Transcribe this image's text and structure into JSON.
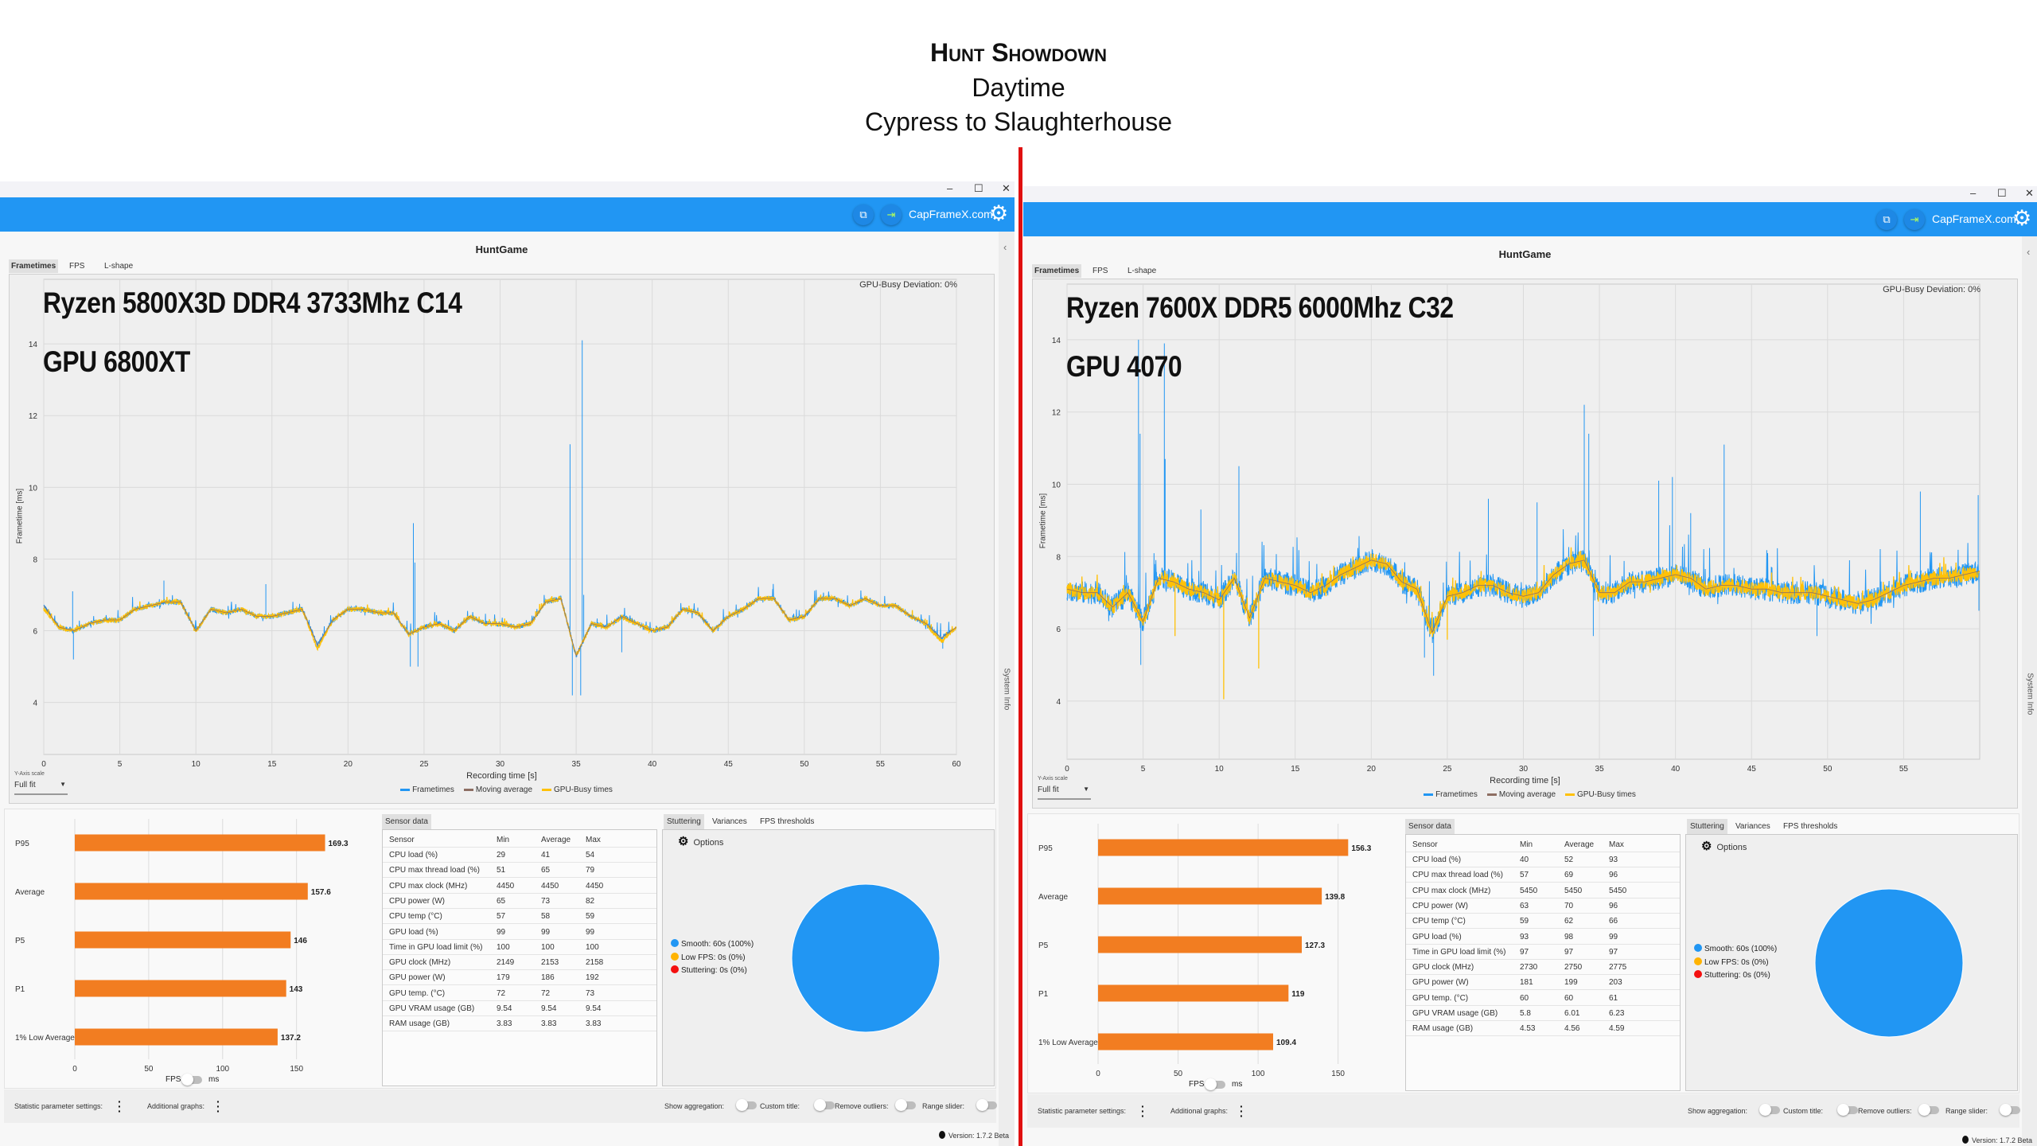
{
  "header": {
    "title": "Hunt Showdown",
    "subtitle": "Daytime",
    "route": "Cypress to Slaughterhouse"
  },
  "colors": {
    "accent": "#2196F3",
    "bar": "#F27D21",
    "frametimes": "#2196F3",
    "moving_average": "#8D6E63",
    "gpu_busy": "#FFC107",
    "divider": "#E01010",
    "smooth": "#2196F3",
    "low_fps": "#FFB300",
    "stuttering": "#F41010"
  },
  "windows": [
    {
      "window_controls": {
        "minimize": "–",
        "maximize": "☐",
        "close": "✕"
      },
      "site_link": "CapFrameX.com",
      "app_title": "HuntGame",
      "tabs": [
        "Frametimes",
        "FPS",
        "L-shape"
      ],
      "overlay_line1": "Ryzen 5800X3D DDR4 3733Mhz C14",
      "overlay_line2": "GPU 6800XT",
      "gpu_busy_deviation": "GPU-Busy Deviation: 0%",
      "side_panel": "System Info",
      "yaxis_scale_label": "Y-Axis scale",
      "yaxis_scale_value": "Full fit",
      "toggle_fps": "FPS",
      "toggle_ms": "ms",
      "sensor": {
        "tab": "Sensor data",
        "columns": [
          "Sensor",
          "Min",
          "Average",
          "Max"
        ],
        "rows": [
          [
            "CPU load (%)",
            "29",
            "41",
            "54"
          ],
          [
            "CPU max thread load (%)",
            "51",
            "65",
            "79"
          ],
          [
            "CPU max clock (MHz)",
            "4450",
            "4450",
            "4450"
          ],
          [
            "CPU power (W)",
            "65",
            "73",
            "82"
          ],
          [
            "CPU temp (°C)",
            "57",
            "58",
            "59"
          ],
          [
            "GPU load (%)",
            "99",
            "99",
            "99"
          ],
          [
            "Time in GPU load limit (%)",
            "100",
            "100",
            "100"
          ],
          [
            "GPU clock (MHz)",
            "2149",
            "2153",
            "2158"
          ],
          [
            "GPU power (W)",
            "179",
            "186",
            "192"
          ],
          [
            "GPU temp. (°C)",
            "72",
            "72",
            "73"
          ],
          [
            "GPU VRAM usage (GB)",
            "9.54",
            "9.54",
            "9.54"
          ],
          [
            "RAM usage (GB)",
            "3.83",
            "3.83",
            "3.83"
          ]
        ]
      },
      "stutter": {
        "tabs": [
          "Stuttering",
          "Variances",
          "FPS thresholds"
        ],
        "options": "Options",
        "legend": [
          "Smooth:  60s (100%)",
          "Low FPS:  0s (0%)",
          "Stuttering:  0s (0%)"
        ]
      },
      "footer": {
        "stat_settings": "Statistic parameter settings:",
        "additional_graphs": "Additional graphs:",
        "show_aggregation": "Show aggregation:",
        "custom_title": "Custom title:",
        "remove_outliers": "Remove outliers:",
        "range_slider": "Range slider:"
      },
      "version": "Version: 1.7.2 Beta"
    },
    {
      "window_controls": {
        "minimize": "–",
        "maximize": "☐",
        "close": "✕"
      },
      "site_link": "CapFrameX.com",
      "app_title": "HuntGame",
      "tabs": [
        "Frametimes",
        "FPS",
        "L-shape"
      ],
      "overlay_line1": "Ryzen 7600X DDR5 6000Mhz C32",
      "overlay_line2": "GPU 4070",
      "gpu_busy_deviation": "GPU-Busy Deviation: 0%",
      "side_panel": "System Info",
      "yaxis_scale_label": "Y-Axis scale",
      "yaxis_scale_value": "Full fit",
      "toggle_fps": "FPS",
      "toggle_ms": "ms",
      "sensor": {
        "tab": "Sensor data",
        "columns": [
          "Sensor",
          "Min",
          "Average",
          "Max"
        ],
        "rows": [
          [
            "CPU load (%)",
            "40",
            "52",
            "93"
          ],
          [
            "CPU max thread load (%)",
            "57",
            "69",
            "96"
          ],
          [
            "CPU max clock (MHz)",
            "5450",
            "5450",
            "5450"
          ],
          [
            "CPU power (W)",
            "63",
            "70",
            "96"
          ],
          [
            "CPU temp (°C)",
            "59",
            "62",
            "66"
          ],
          [
            "GPU load (%)",
            "93",
            "98",
            "99"
          ],
          [
            "Time in GPU load limit (%)",
            "97",
            "97",
            "97"
          ],
          [
            "GPU clock (MHz)",
            "2730",
            "2750",
            "2775"
          ],
          [
            "GPU power (W)",
            "181",
            "199",
            "203"
          ],
          [
            "GPU temp. (°C)",
            "60",
            "60",
            "61"
          ],
          [
            "GPU VRAM usage (GB)",
            "5.8",
            "6.01",
            "6.23"
          ],
          [
            "RAM usage (GB)",
            "4.53",
            "4.56",
            "4.59"
          ]
        ]
      },
      "stutter": {
        "tabs": [
          "Stuttering",
          "Variances",
          "FPS thresholds"
        ],
        "options": "Options",
        "legend": [
          "Smooth:  60s (100%)",
          "Low FPS:  0s (0%)",
          "Stuttering:  0s (0%)"
        ]
      },
      "footer": {
        "stat_settings": "Statistic parameter settings:",
        "additional_graphs": "Additional graphs:",
        "show_aggregation": "Show aggregation:",
        "custom_title": "Custom title:",
        "remove_outliers": "Remove outliers:",
        "range_slider": "Range slider:"
      },
      "version": "Version: 1.7.2 Beta"
    }
  ],
  "chart_data": [
    {
      "type": "line",
      "xlabel": "Recording time [s]",
      "ylabel": "Frametime [ms]",
      "xlim": [
        0,
        60
      ],
      "ylim": [
        2.55,
        15.8
      ],
      "x_ticks": [
        0,
        5,
        10,
        15,
        20,
        25,
        30,
        35,
        40,
        45,
        50,
        55,
        60
      ],
      "y_ticks": [
        4,
        6,
        8,
        10,
        12,
        14
      ],
      "grid": true,
      "legend_position": "bottom",
      "legend": [
        "Frametimes",
        "Moving average",
        "GPU-Busy times"
      ],
      "x": [
        0,
        1,
        2,
        3,
        4,
        5,
        6,
        7,
        8,
        9,
        10,
        11,
        12,
        13,
        14,
        15,
        16,
        17,
        18,
        19,
        20,
        21,
        22,
        23,
        24,
        25,
        26,
        27,
        28,
        29,
        30,
        31,
        32,
        33,
        34,
        35,
        36,
        37,
        38,
        39,
        40,
        41,
        42,
        43,
        44,
        45,
        46,
        47,
        48,
        49,
        50,
        51,
        52,
        53,
        54,
        55,
        56,
        57,
        58,
        59,
        60
      ],
      "series": [
        {
          "name": "Frametimes",
          "values": [
            6.7,
            6.1,
            6.0,
            6.2,
            6.3,
            6.3,
            6.6,
            6.7,
            6.8,
            6.8,
            6.0,
            6.6,
            6.5,
            6.6,
            6.4,
            6.4,
            6.5,
            6.6,
            5.6,
            6.3,
            6.6,
            6.6,
            6.5,
            6.5,
            5.9,
            6.1,
            6.2,
            6.0,
            6.4,
            6.2,
            6.2,
            6.1,
            6.2,
            6.8,
            6.9,
            5.3,
            6.2,
            6.1,
            6.4,
            6.2,
            6.0,
            6.1,
            6.6,
            6.5,
            6.0,
            6.4,
            6.6,
            6.9,
            6.9,
            6.3,
            6.4,
            6.9,
            6.9,
            6.7,
            6.9,
            6.7,
            6.7,
            6.4,
            6.2,
            5.8,
            6.1
          ],
          "spikes": [
            [
              1.9,
              7.1
            ],
            [
              1.95,
              5.2
            ],
            [
              7.9,
              7.4
            ],
            [
              14.6,
              7.3
            ],
            [
              24.1,
              5.0
            ],
            [
              24.3,
              9.0
            ],
            [
              24.4,
              7.9
            ],
            [
              24.6,
              5.0
            ],
            [
              34.6,
              11.2
            ],
            [
              34.75,
              4.2
            ],
            [
              35.3,
              4.2
            ],
            [
              35.4,
              14.1
            ],
            [
              35.5,
              7.0
            ],
            [
              38.0,
              5.4
            ],
            [
              59.1,
              5.5
            ]
          ]
        },
        {
          "name": "Moving average",
          "values": [
            6.7,
            6.1,
            6.0,
            6.2,
            6.3,
            6.3,
            6.6,
            6.7,
            6.8,
            6.8,
            6.0,
            6.6,
            6.5,
            6.6,
            6.4,
            6.4,
            6.5,
            6.6,
            5.6,
            6.3,
            6.6,
            6.6,
            6.5,
            6.5,
            5.9,
            6.1,
            6.2,
            6.0,
            6.4,
            6.2,
            6.2,
            6.1,
            6.2,
            6.8,
            6.9,
            5.3,
            6.2,
            6.1,
            6.4,
            6.2,
            6.0,
            6.1,
            6.6,
            6.5,
            6.0,
            6.4,
            6.6,
            6.9,
            6.9,
            6.3,
            6.4,
            6.9,
            6.9,
            6.7,
            6.9,
            6.7,
            6.7,
            6.4,
            6.2,
            5.8,
            6.1
          ]
        },
        {
          "name": "GPU-Busy times",
          "values": [
            6.6,
            6.1,
            6.0,
            6.2,
            6.3,
            6.3,
            6.6,
            6.7,
            6.8,
            6.8,
            6.0,
            6.6,
            6.5,
            6.6,
            6.4,
            6.4,
            6.5,
            6.6,
            5.5,
            6.3,
            6.6,
            6.6,
            6.5,
            6.5,
            5.9,
            6.1,
            6.2,
            6.0,
            6.4,
            6.2,
            6.2,
            6.1,
            6.2,
            6.8,
            6.9,
            5.3,
            6.2,
            6.1,
            6.4,
            6.2,
            6.0,
            6.1,
            6.6,
            6.5,
            6.0,
            6.4,
            6.6,
            6.9,
            6.9,
            6.3,
            6.4,
            6.9,
            6.9,
            6.7,
            6.9,
            6.7,
            6.7,
            6.4,
            6.2,
            5.7,
            6.1
          ]
        }
      ]
    },
    {
      "type": "bar",
      "orientation": "horizontal",
      "categories": [
        "P95",
        "Average",
        "P5",
        "P1",
        "1% Low Average"
      ],
      "values": [
        169.3,
        157.6,
        146,
        143,
        137.2
      ],
      "value_labels": [
        "169.3",
        "157.6",
        "146",
        "143",
        "137.2"
      ],
      "xlim": [
        0,
        197
      ],
      "x_ticks": [
        0,
        50,
        100,
        150
      ],
      "grid": true
    },
    {
      "type": "pie",
      "categories": [
        "Smooth",
        "Low FPS",
        "Stuttering"
      ],
      "values": [
        100,
        0,
        0
      ]
    },
    {
      "type": "line",
      "xlabel": "Recording time [s]",
      "ylabel": "Frametime [ms]",
      "xlim": [
        0,
        60
      ],
      "ylim": [
        2.39,
        15.54
      ],
      "x_ticks": [
        0,
        5,
        10,
        15,
        20,
        25,
        30,
        35,
        40,
        45,
        50,
        55
      ],
      "y_ticks": [
        4,
        6,
        8,
        10,
        12,
        14
      ],
      "grid": true,
      "legend_position": "bottom",
      "legend": [
        "Frametimes",
        "Moving average",
        "GPU-Busy times"
      ],
      "x": [
        0,
        1,
        2,
        3,
        4,
        5,
        6,
        7,
        8,
        9,
        10,
        11,
        12,
        13,
        14,
        15,
        16,
        17,
        18,
        19,
        20,
        21,
        22,
        23,
        24,
        25,
        26,
        27,
        28,
        29,
        30,
        31,
        32,
        33,
        34,
        35,
        36,
        37,
        38,
        39,
        40,
        41,
        42,
        43,
        44,
        45,
        46,
        47,
        48,
        49,
        50,
        51,
        52,
        53,
        54,
        55,
        56,
        57,
        58,
        59,
        60
      ],
      "series": [
        {
          "name": "Frametimes",
          "values": [
            7.1,
            7.0,
            7.0,
            6.6,
            7.0,
            6.2,
            7.4,
            7.3,
            7.1,
            7.0,
            6.8,
            7.4,
            6.3,
            7.4,
            7.3,
            7.2,
            7.0,
            7.2,
            7.5,
            7.7,
            7.9,
            7.8,
            7.3,
            7.1,
            5.9,
            6.9,
            7.0,
            7.2,
            7.2,
            7.0,
            6.9,
            7.0,
            7.5,
            7.8,
            7.9,
            7.0,
            7.0,
            7.3,
            7.3,
            7.4,
            7.5,
            7.4,
            7.1,
            7.2,
            7.2,
            7.1,
            7.1,
            7.0,
            7.0,
            7.0,
            6.9,
            6.8,
            6.7,
            6.8,
            7.0,
            7.2,
            7.3,
            7.4,
            7.4,
            7.5,
            7.6
          ],
          "spikes": [
            [
              4.7,
              14.0
            ],
            [
              4.8,
              11.4
            ],
            [
              4.85,
              5.0
            ],
            [
              6.4,
              13.9
            ],
            [
              6.45,
              10.7
            ],
            [
              8.8,
              9.3
            ],
            [
              11.3,
              10.5
            ],
            [
              23.5,
              5.2
            ],
            [
              24.1,
              4.7
            ],
            [
              27.7,
              9.6
            ],
            [
              30.9,
              9.5
            ],
            [
              34.0,
              12.2
            ],
            [
              34.3,
              11.4
            ],
            [
              34.6,
              5.8
            ],
            [
              38.9,
              10.1
            ],
            [
              39.8,
              10.2
            ],
            [
              41.0,
              9.2
            ],
            [
              43.2,
              11.1
            ],
            [
              49.3,
              5.8
            ],
            [
              56.1,
              9.8
            ],
            [
              59.9,
              9.7
            ],
            [
              59.95,
              6.5
            ]
          ]
        },
        {
          "name": "Moving average",
          "values": [
            7.1,
            7.0,
            7.0,
            6.6,
            7.0,
            6.2,
            7.4,
            7.3,
            7.1,
            7.0,
            6.8,
            7.4,
            6.3,
            7.4,
            7.3,
            7.2,
            7.0,
            7.2,
            7.5,
            7.7,
            7.9,
            7.8,
            7.3,
            7.1,
            5.9,
            6.9,
            7.0,
            7.2,
            7.2,
            7.0,
            6.9,
            7.0,
            7.5,
            7.8,
            7.9,
            7.0,
            7.0,
            7.3,
            7.3,
            7.4,
            7.5,
            7.4,
            7.1,
            7.2,
            7.2,
            7.1,
            7.1,
            7.0,
            7.0,
            7.0,
            6.9,
            6.8,
            6.7,
            6.8,
            7.0,
            7.2,
            7.3,
            7.4,
            7.4,
            7.5,
            7.6
          ]
        },
        {
          "name": "GPU-Busy times",
          "values": [
            7.1,
            7.0,
            7.0,
            6.6,
            7.0,
            6.2,
            7.4,
            7.3,
            7.1,
            7.0,
            6.8,
            7.4,
            6.3,
            7.4,
            7.3,
            7.2,
            7.0,
            7.2,
            7.5,
            7.7,
            7.9,
            7.8,
            7.3,
            7.1,
            5.9,
            6.9,
            7.0,
            7.2,
            7.2,
            7.0,
            6.9,
            7.0,
            7.5,
            7.8,
            7.9,
            7.0,
            7.0,
            7.3,
            7.3,
            7.4,
            7.5,
            7.4,
            7.1,
            7.2,
            7.2,
            7.1,
            7.1,
            7.0,
            7.0,
            7.0,
            6.9,
            6.8,
            6.7,
            6.8,
            7.0,
            7.2,
            7.3,
            7.4,
            7.4,
            7.5,
            7.6
          ],
          "spikes": [
            [
              7.1,
              5.8
            ],
            [
              10.3,
              4.05
            ],
            [
              12.6,
              4.9
            ],
            [
              25.0,
              5.7
            ]
          ]
        }
      ]
    },
    {
      "type": "bar",
      "orientation": "horizontal",
      "categories": [
        "P95",
        "Average",
        "P5",
        "P1",
        "1% Low Average"
      ],
      "values": [
        156.3,
        139.8,
        127.3,
        119,
        109.4
      ],
      "value_labels": [
        "156.3",
        "139.8",
        "127.3",
        "119",
        "109.4"
      ],
      "xlim": [
        0,
        182
      ],
      "x_ticks": [
        0,
        50,
        100,
        150
      ],
      "grid": true
    },
    {
      "type": "pie",
      "categories": [
        "Smooth",
        "Low FPS",
        "Stuttering"
      ],
      "values": [
        100,
        0,
        0
      ]
    }
  ]
}
